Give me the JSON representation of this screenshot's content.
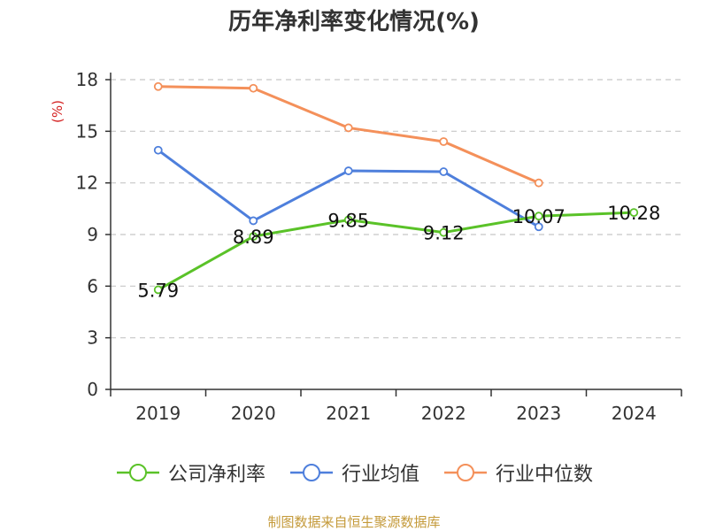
{
  "chart_data": {
    "type": "line",
    "title": "历年净利率变化情况(%)",
    "ylabel": "(%)",
    "xlabel": "",
    "categories": [
      "2019",
      "2020",
      "2021",
      "2022",
      "2023",
      "2024"
    ],
    "ylim": [
      0,
      18
    ],
    "yticks": [
      0,
      3,
      6,
      9,
      12,
      15,
      18
    ],
    "grid": true,
    "legend_position": "bottom",
    "series": [
      {
        "name": "公司净利率",
        "color": "#5ac228",
        "values": [
          5.79,
          8.89,
          9.85,
          9.12,
          10.07,
          10.28
        ],
        "labels": [
          "5.79",
          "8.89",
          "9.85",
          "9.12",
          "10.07",
          "10.28"
        ]
      },
      {
        "name": "行业均值",
        "color": "#4e7fdc",
        "values": [
          13.9,
          9.8,
          12.7,
          12.65,
          9.45,
          null
        ]
      },
      {
        "name": "行业中位数",
        "color": "#f4905a",
        "values": [
          17.6,
          17.5,
          15.2,
          14.4,
          12.0,
          null
        ]
      }
    ]
  },
  "source": "制图数据来自恒生聚源数据库"
}
